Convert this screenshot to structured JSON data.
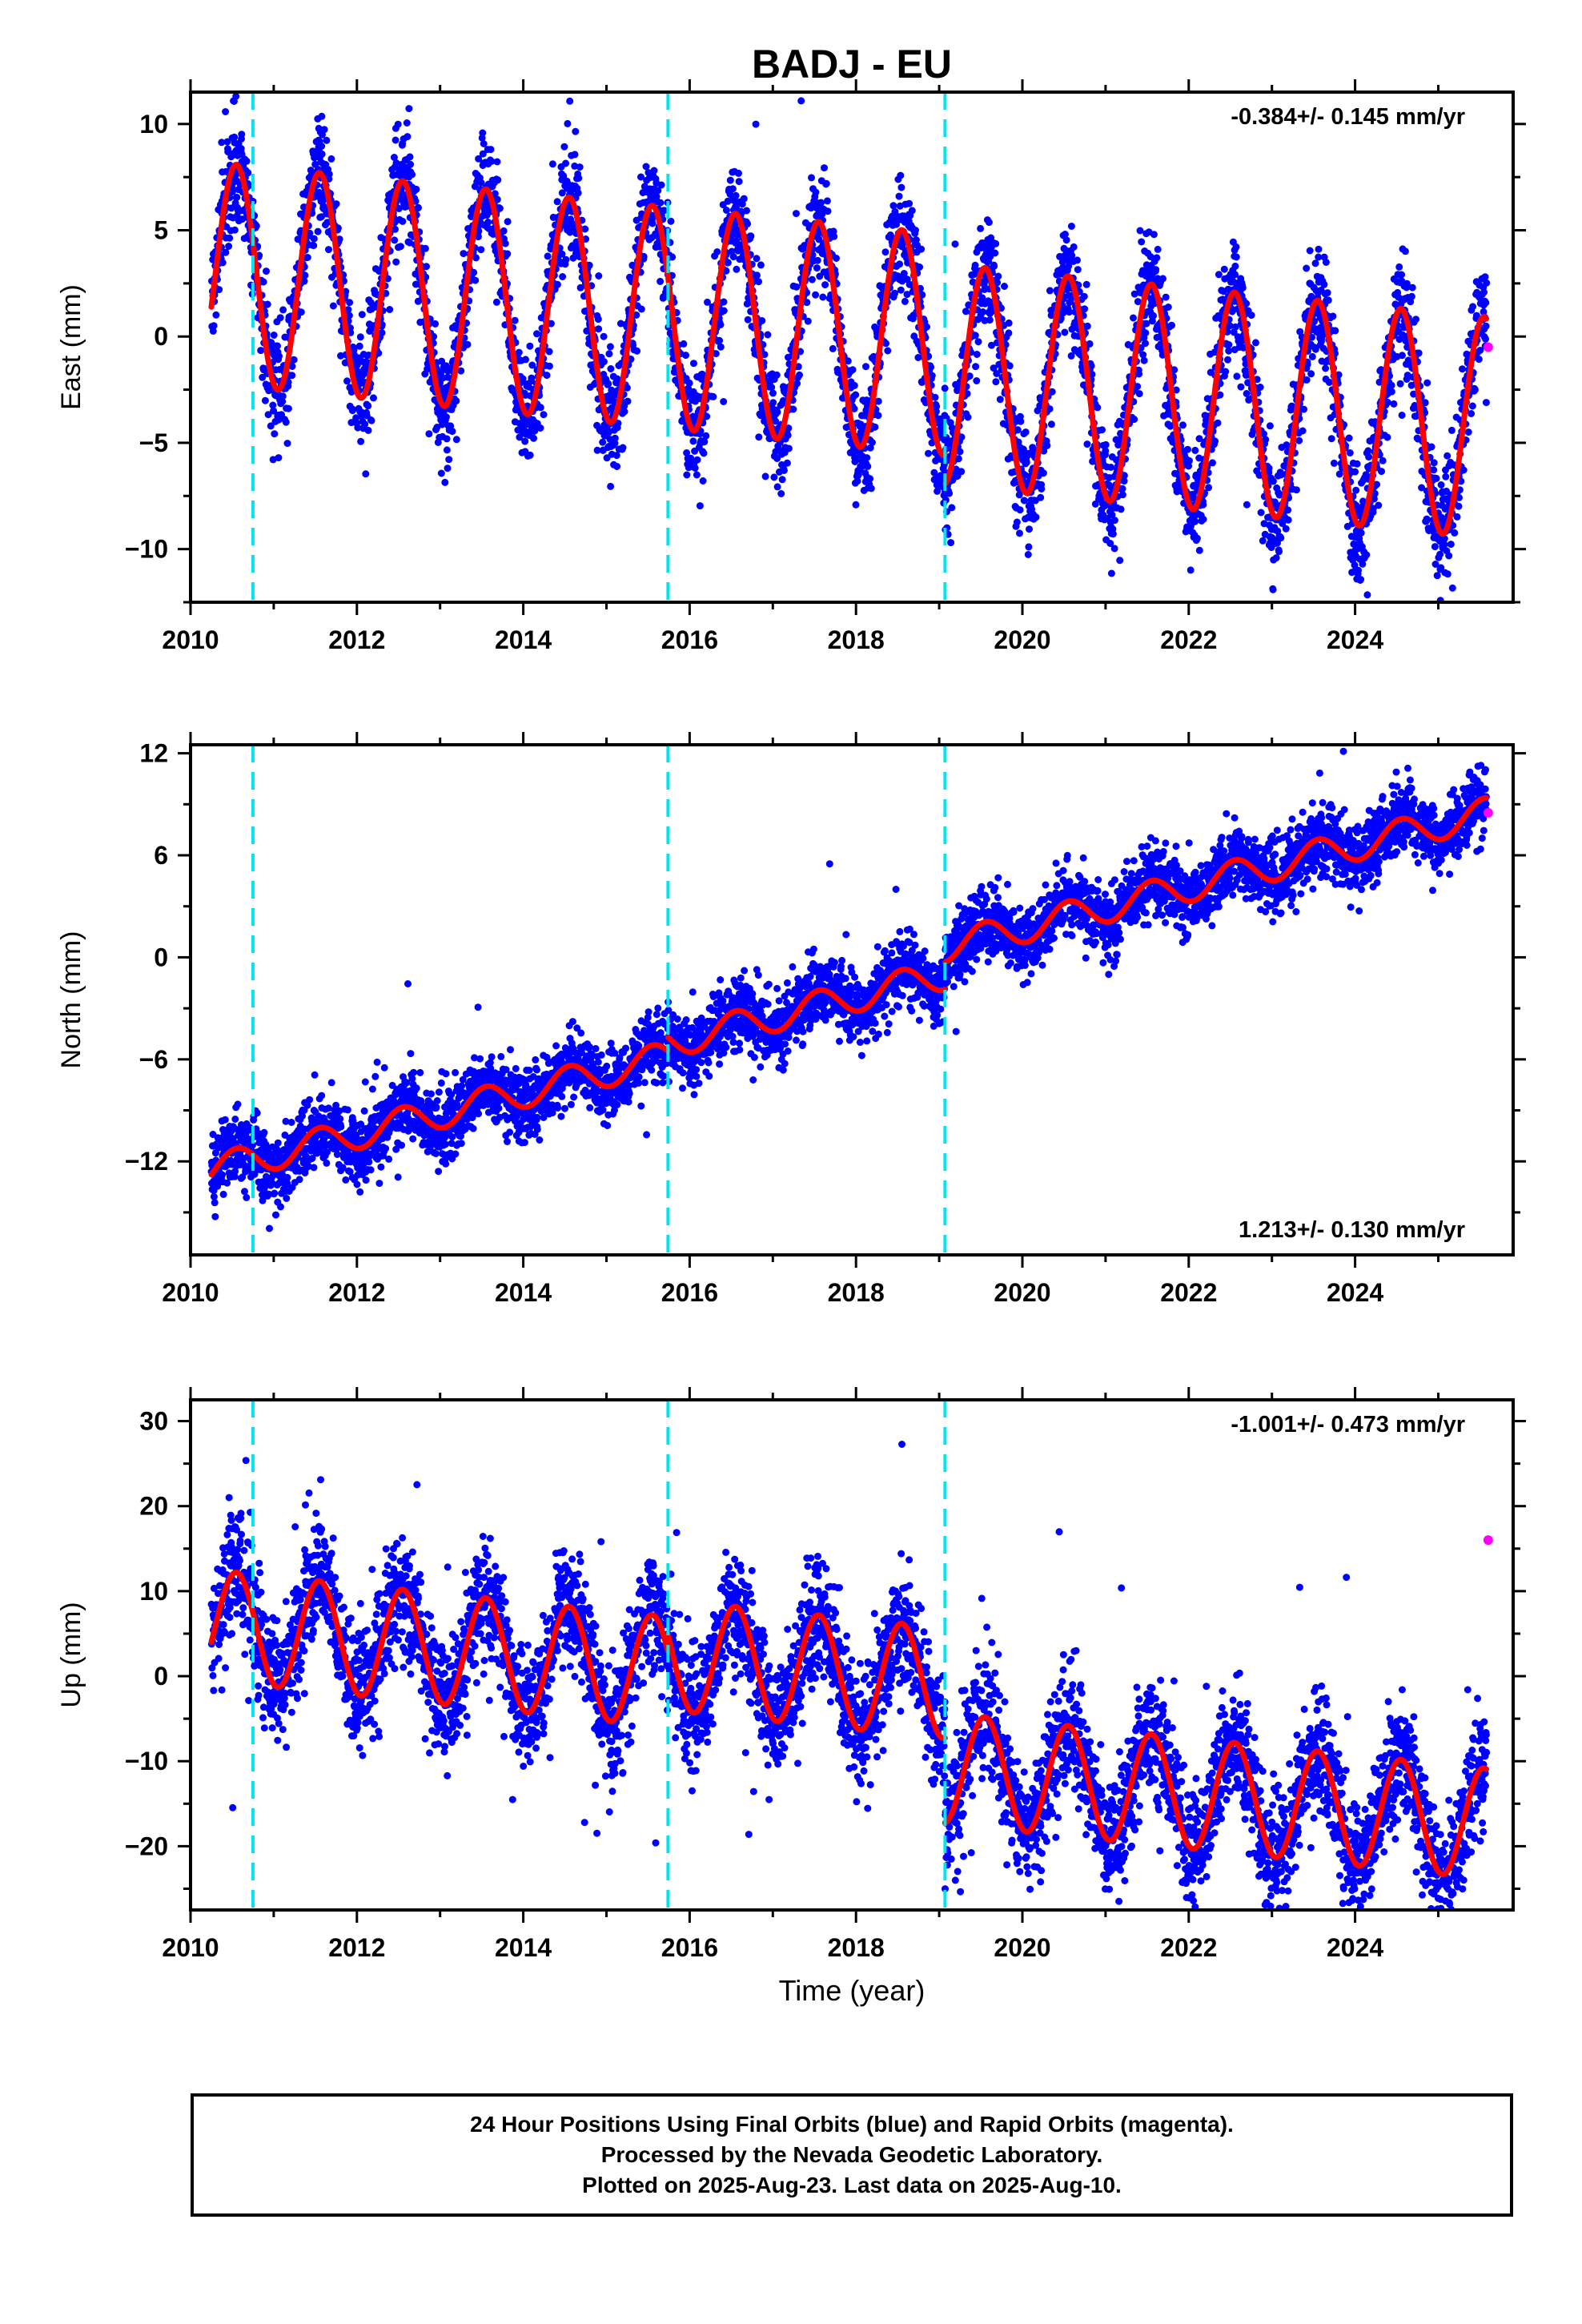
{
  "chart_data": [
    {
      "type": "scatter",
      "title": "BADJ - EU",
      "ylabel": "East (mm)",
      "xlabel": "",
      "rate_label": "-0.384+/- 0.145 mm/yr",
      "rate_position": "top-right",
      "xlim": [
        2010,
        2025.9
      ],
      "ylim": [
        -12.5,
        11.5
      ],
      "yticks": [
        -10,
        -5,
        0,
        5,
        10
      ],
      "yminor": [
        -12.5,
        -7.5,
        -2.5,
        2.5,
        7.5
      ],
      "xticks": [
        2010,
        2012,
        2014,
        2016,
        2018,
        2020,
        2022,
        2024
      ],
      "model": {
        "start": 2010.25,
        "end": 2025.58,
        "offset": 3.0,
        "rate": -0.384,
        "amplitude": 5.2,
        "phase_peak": 0.55,
        "steps": [
          {
            "at": 2015.74,
            "value": 0
          },
          {
            "at": 2019.07,
            "value": -1.4
          }
        ]
      },
      "scatter": {
        "noise": 1.3,
        "outlier_rate": 0.01,
        "outlier_scale": 3
      },
      "rapid_orbits": [
        {
          "x": 2025.6,
          "y": -0.5
        }
      ],
      "equipment_changes": [
        2010.75,
        2015.74,
        2019.07
      ],
      "grid": false
    },
    {
      "type": "scatter",
      "title": "",
      "ylabel": "North (mm)",
      "xlabel": "",
      "rate_label": "1.213+/- 0.130 mm/yr",
      "rate_position": "bottom-right",
      "xlim": [
        2010,
        2025.9
      ],
      "ylim": [
        -17.5,
        12.5
      ],
      "yticks": [
        -12,
        -6,
        0,
        6,
        12
      ],
      "yminor": [
        -15,
        -9,
        -3,
        3,
        9
      ],
      "xticks": [
        2010,
        2012,
        2014,
        2016,
        2018,
        2020,
        2022,
        2024
      ],
      "model": {
        "start": 2010.25,
        "end": 2025.58,
        "offset": -12.5,
        "rate": 1.213,
        "amplitude": 0.9,
        "phase_peak": 0.55,
        "steps": [
          {
            "at": 2015.74,
            "value": 0.8
          },
          {
            "at": 2019.07,
            "value": 1.6
          }
        ]
      },
      "scatter": {
        "noise": 1.0,
        "outlier_rate": 0.01,
        "outlier_scale": 3
      },
      "rapid_orbits": [
        {
          "x": 2025.6,
          "y": 8.5
        }
      ],
      "equipment_changes": [
        2010.75,
        2015.74,
        2019.07
      ],
      "grid": false
    },
    {
      "type": "scatter",
      "title": "",
      "ylabel": "Up (mm)",
      "xlabel": "Time (year)",
      "rate_label": "-1.001+/- 0.473 mm/yr",
      "rate_position": "top-right",
      "xlim": [
        2010,
        2025.9
      ],
      "ylim": [
        -27.5,
        32.5
      ],
      "yticks": [
        -20,
        -10,
        0,
        10,
        20,
        30
      ],
      "yminor": [
        -25,
        -15,
        -5,
        5,
        15,
        25
      ],
      "xticks": [
        2010,
        2012,
        2014,
        2016,
        2018,
        2020,
        2022,
        2024
      ],
      "model": {
        "start": 2010.25,
        "end": 2025.58,
        "offset": 6.0,
        "rate": -1.001,
        "amplitude": 6.5,
        "phase_peak": 0.55,
        "steps": [
          {
            "at": 2015.74,
            "value": 2.0
          },
          {
            "at": 2019.07,
            "value": -10.0
          }
        ]
      },
      "scatter": {
        "noise": 3.5,
        "outlier_rate": 0.015,
        "outlier_scale": 3
      },
      "rapid_orbits": [
        {
          "x": 2025.6,
          "y": 16
        }
      ],
      "equipment_changes": [
        2010.75,
        2015.74,
        2019.07
      ],
      "grid": false
    }
  ],
  "colors": {
    "final_orbits": "#0000ff",
    "rapid_orbits": "#ff00ff",
    "model": "#ff0000",
    "equipment_change": "#00e5ee"
  },
  "footer": {
    "line1": "24 Hour Positions Using Final Orbits (blue) and Rapid Orbits (magenta).",
    "line2": "Processed by the Nevada Geodetic Laboratory.",
    "line3": "Plotted on 2025-Aug-23. Last data on 2025-Aug-10."
  }
}
